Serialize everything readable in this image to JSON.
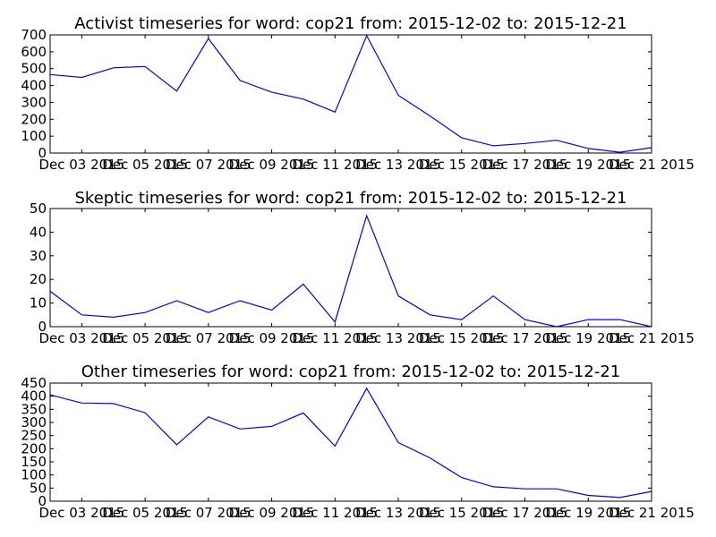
{
  "chart_data": [
    {
      "type": "line",
      "title": "Activist timeseries for word: cop21 from: 2015-12-02 to: 2015-12-21",
      "x": [
        "2015-12-02",
        "2015-12-03",
        "2015-12-04",
        "2015-12-05",
        "2015-12-06",
        "2015-12-07",
        "2015-12-08",
        "2015-12-09",
        "2015-12-10",
        "2015-12-11",
        "2015-12-12",
        "2015-12-13",
        "2015-12-14",
        "2015-12-15",
        "2015-12-16",
        "2015-12-17",
        "2015-12-18",
        "2015-12-19",
        "2015-12-20",
        "2015-12-21"
      ],
      "values": [
        465,
        448,
        505,
        513,
        367,
        678,
        430,
        360,
        320,
        243,
        695,
        342,
        220,
        90,
        43,
        57,
        76,
        27,
        5,
        32
      ],
      "ylim": [
        0,
        700
      ],
      "yticks": [
        0,
        100,
        200,
        300,
        400,
        500,
        600,
        700
      ],
      "xtick_labels": [
        "Dec 03 2015",
        "Dec 05 2015",
        "Dec 07 2015",
        "Dec 09 2015",
        "Dec 11 2015",
        "Dec 13 2015",
        "Dec 15 2015",
        "Dec 17 2015",
        "Dec 19 2015",
        "Dec 21 2015"
      ],
      "color": "#0000ff"
    },
    {
      "type": "line",
      "title": "Skeptic timeseries for word: cop21 from: 2015-12-02 to: 2015-12-21",
      "x": [
        "2015-12-02",
        "2015-12-03",
        "2015-12-04",
        "2015-12-05",
        "2015-12-06",
        "2015-12-07",
        "2015-12-08",
        "2015-12-09",
        "2015-12-10",
        "2015-12-11",
        "2015-12-12",
        "2015-12-13",
        "2015-12-14",
        "2015-12-15",
        "2015-12-16",
        "2015-12-17",
        "2015-12-18",
        "2015-12-19",
        "2015-12-20",
        "2015-12-21"
      ],
      "values": [
        15,
        5,
        4,
        6,
        11,
        6,
        11,
        7,
        18,
        2,
        47,
        13,
        5,
        3,
        13,
        3,
        0,
        3,
        3,
        0
      ],
      "ylim": [
        0,
        50
      ],
      "yticks": [
        0,
        10,
        20,
        30,
        40,
        50
      ],
      "xtick_labels": [
        "Dec 03 2015",
        "Dec 05 2015",
        "Dec 07 2015",
        "Dec 09 2015",
        "Dec 11 2015",
        "Dec 13 2015",
        "Dec 15 2015",
        "Dec 17 2015",
        "Dec 19 2015",
        "Dec 21 2015"
      ],
      "color": "#0000ff"
    },
    {
      "type": "line",
      "title": "Other timeseries for word: cop21 from: 2015-12-02 to: 2015-12-21",
      "x": [
        "2015-12-02",
        "2015-12-03",
        "2015-12-04",
        "2015-12-05",
        "2015-12-06",
        "2015-12-07",
        "2015-12-08",
        "2015-12-09",
        "2015-12-10",
        "2015-12-11",
        "2015-12-12",
        "2015-12-13",
        "2015-12-14",
        "2015-12-15",
        "2015-12-16",
        "2015-12-17",
        "2015-12-18",
        "2015-12-19",
        "2015-12-20",
        "2015-12-21"
      ],
      "values": [
        405,
        374,
        372,
        337,
        215,
        321,
        275,
        285,
        336,
        210,
        430,
        223,
        165,
        90,
        55,
        47,
        47,
        22,
        14,
        37
      ],
      "ylim": [
        0,
        450
      ],
      "yticks": [
        0,
        50,
        100,
        150,
        200,
        250,
        300,
        350,
        400,
        450
      ],
      "xtick_labels": [
        "Dec 03 2015",
        "Dec 05 2015",
        "Dec 07 2015",
        "Dec 09 2015",
        "Dec 11 2015",
        "Dec 13 2015",
        "Dec 15 2015",
        "Dec 17 2015",
        "Dec 19 2015",
        "Dec 21 2015"
      ],
      "color": "#0000ff"
    }
  ]
}
